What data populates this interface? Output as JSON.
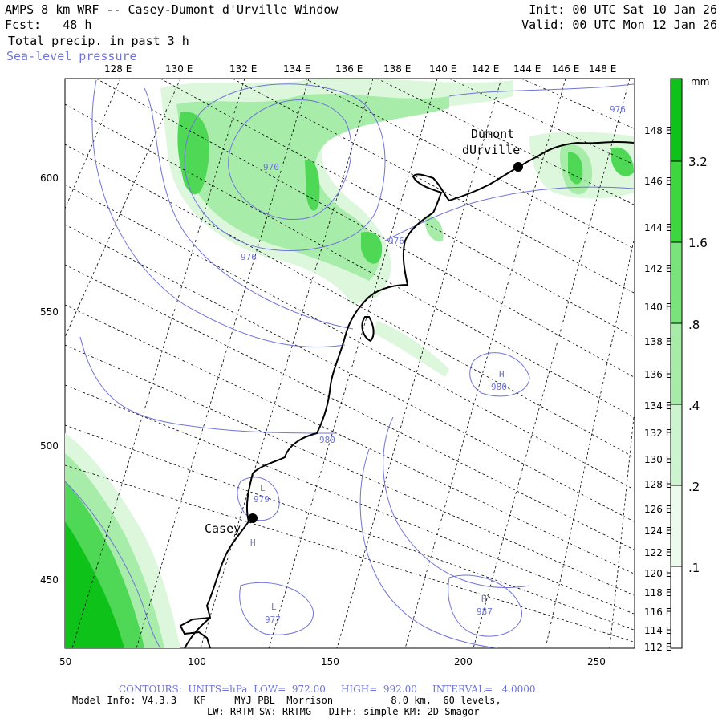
{
  "header": {
    "title": "AMPS 8 km WRF -- Casey-Dumont d'Urville Window",
    "forecast": "Fcst:   48 h",
    "field": "Total precip. in past 3 h",
    "overlay": "Sea-level pressure",
    "init": "Init: 00 UTC Sat 10 Jan 26",
    "valid": "Valid: 00 UTC Mon 12 Jan 26"
  },
  "map": {
    "top_lon_labels": [
      "128 E",
      "130 E",
      "132 E",
      "134 E",
      "136 E",
      "138 E",
      "140 E",
      "142 E",
      "144 E",
      "146 E",
      "148 E"
    ],
    "right_lat_labels": [
      "148 E",
      "146 E",
      "144 E",
      "142 E",
      "140 E",
      "138 E",
      "136 E",
      "134 E",
      "132 E",
      "130 E",
      "128 E",
      "126 E",
      "124 E",
      "122 E",
      "120 E",
      "118 E",
      "116 E",
      "114 E",
      "112 E"
    ],
    "x_ticks": [
      "50",
      "100",
      "150",
      "200",
      "250"
    ],
    "y_ticks": [
      "600",
      "550",
      "500",
      "450"
    ],
    "stations": [
      {
        "name": "Casey"
      },
      {
        "name": "Dumont"
      },
      {
        "name": "dUrville"
      }
    ],
    "pressure_labels": [
      "976",
      "970",
      "976",
      "976",
      "980",
      "980",
      "979",
      "977",
      "987"
    ],
    "high_low_marks": [
      "L",
      "H",
      "L",
      "H",
      "H"
    ],
    "colors": {
      "contour": "#6f74d8",
      "coast": "#000000",
      "grid": "#000000",
      "precip_light": "#dcf7dc",
      "precip_mid": "#a8ecaa",
      "precip_strong": "#4fd855",
      "precip_max": "#0fc21a"
    }
  },
  "legend": {
    "unit": "mm",
    "levels": [
      "3.2",
      "1.6",
      ".8",
      ".4",
      ".2",
      ".1"
    ],
    "colors": [
      "#0fc21a",
      "#3ed63f",
      "#78e47a",
      "#a6eca8",
      "#cdf4ce",
      "#ecfbec"
    ]
  },
  "footer": {
    "contours": "CONTOURS:  UNITS=hPa  LOW=  972.00     HIGH=  992.00     INTERVAL=   4.0000",
    "model": "Model Info: V4.3.3   KF     MYJ PBL  Morrison          8.0 km,  60 levels,",
    "model2": "LW: RRTM SW: RRTMG   DIFF: simple KM: 2D Smagor"
  }
}
